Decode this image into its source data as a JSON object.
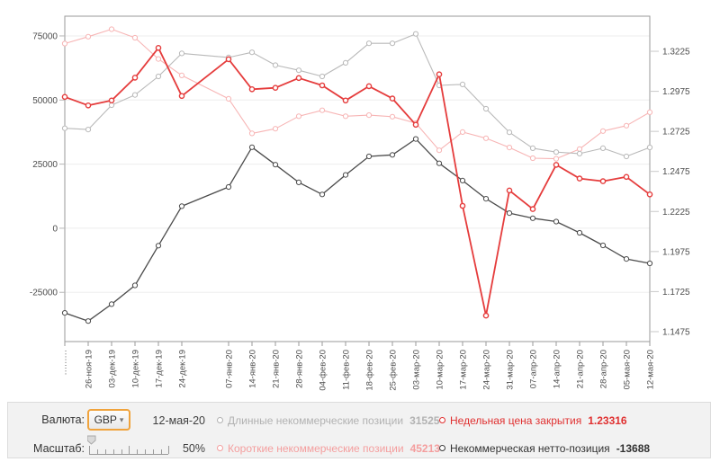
{
  "controls": {
    "currency_label": "Валюта:",
    "currency_value": "GBP",
    "date": "12-мая-20",
    "scale_label": "Масштаб:",
    "scale_value": "50%"
  },
  "legend": {
    "long": {
      "label": "Длинные некоммерческие позиции",
      "value": "31525"
    },
    "short": {
      "label": "Короткие некоммерческие позиции",
      "value": "45213"
    },
    "price": {
      "label": "Недельная цена закрытия",
      "value": "1.23316"
    },
    "net": {
      "label": "Некоммерческая нетто-позиция",
      "value": "-13688"
    }
  },
  "colors": {
    "long_line": "#b9b9b9",
    "short_line": "#f7b5b5",
    "price_line": "#e53c3c",
    "net_line": "#4b4b4b",
    "accent_border": "#f0a33c",
    "panel_bg": "#f2f2f2"
  },
  "chart_data": {
    "type": "line",
    "title": "",
    "x_labels": [
      "·········",
      "26-ноя-19",
      "03-дек-19",
      "10-дек-19",
      "17-дек-19",
      "24-дек-19",
      "",
      "07-янв-20",
      "14-янв-20",
      "21-янв-20",
      "28-янв-20",
      "04-фев-20",
      "11-фев-20",
      "18-фев-20",
      "25-фев-20",
      "03-мар-20",
      "10-мар-20",
      "17-мар-20",
      "24-мар-20",
      "31-мар-20",
      "07-апр-20",
      "14-апр-20",
      "21-апр-20",
      "28-апр-20",
      "05-мая-20",
      "12-мая-20"
    ],
    "left_axis": {
      "tick_labels": [
        "75000",
        "50000",
        "25000",
        "0",
        "-25000"
      ],
      "ticks": [
        75000,
        50000,
        25000,
        0,
        -25000
      ],
      "ylim": [
        -44200,
        82700
      ]
    },
    "right_axis": {
      "tick_labels": [
        "1.3225",
        "1.2975",
        "1.2725",
        "1.2475",
        "1.2225",
        "1.1975",
        "1.1725",
        "1.1475"
      ],
      "ticks": [
        1.3225,
        1.2975,
        1.2725,
        1.2475,
        1.2225,
        1.1975,
        1.1725,
        1.1475
      ],
      "ylim": [
        1.1413,
        1.3444
      ]
    },
    "grid": "horizontal-left-ticks",
    "legend_position": "bottom-panel",
    "series": [
      {
        "name": "Короткие некоммерческие позиции",
        "axis": "left",
        "color": "#f7b5b5",
        "width": 1.1,
        "values": [
          72000,
          74700,
          77600,
          74300,
          66000,
          59600,
          null,
          50500,
          37000,
          38800,
          43700,
          46000,
          43700,
          44100,
          43500,
          41000,
          30400,
          37500,
          35100,
          31500,
          27300,
          27100,
          30900,
          37900,
          40000,
          45213
        ]
      },
      {
        "name": "Длинные некоммерческие позиции",
        "axis": "left",
        "color": "#b9b9b9",
        "width": 1.1,
        "values": [
          39000,
          38500,
          48000,
          52000,
          59200,
          68200,
          null,
          66600,
          68600,
          63600,
          61600,
          59200,
          64500,
          72100,
          72100,
          75800,
          55700,
          56100,
          46600,
          37400,
          31200,
          29700,
          29100,
          31200,
          28000,
          31525
        ]
      },
      {
        "name": "Некоммерческая нетто-позиция",
        "axis": "left",
        "color": "#4b4b4b",
        "width": 1.3,
        "values": [
          -33000,
          -36200,
          -29600,
          -22300,
          -6800,
          8600,
          null,
          16100,
          31600,
          24800,
          17900,
          13200,
          20800,
          28000,
          28600,
          34800,
          25300,
          18600,
          11500,
          5900,
          3900,
          2600,
          -1800,
          -6700,
          -12000,
          -13688
        ]
      },
      {
        "name": "Недельная цена закрытия",
        "axis": "right",
        "color": "#e53c3c",
        "width": 1.8,
        "values": [
          1.294,
          1.2887,
          1.2918,
          1.306,
          1.3246,
          1.2946,
          null,
          1.3175,
          1.2988,
          1.2997,
          1.3058,
          1.3012,
          1.2918,
          1.3007,
          1.293,
          1.2766,
          1.3081,
          1.226,
          1.1575,
          1.2356,
          1.224,
          1.2516,
          1.2431,
          1.2414,
          1.2441,
          1.23316
        ]
      }
    ]
  }
}
